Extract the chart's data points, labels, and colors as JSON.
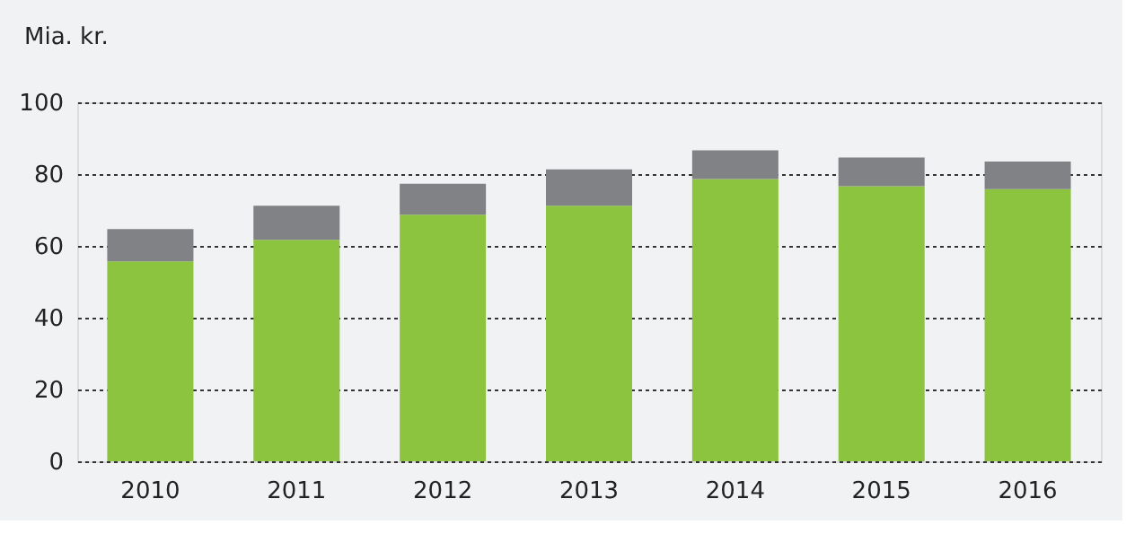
{
  "chart_data": {
    "type": "bar",
    "ylabel": "Mia. kr.",
    "categories": [
      "2010",
      "2011",
      "2012",
      "2013",
      "2014",
      "2015",
      "2016"
    ],
    "stacked": true,
    "series": [
      {
        "color": "#8cc43f",
        "values": [
          55.7,
          61.7,
          68.7,
          71.2,
          78.6,
          76.6,
          75.8
        ]
      },
      {
        "color": "#818285",
        "values": [
          9,
          9.5,
          8.6,
          10.1,
          8,
          8,
          7.7
        ]
      }
    ],
    "ylim": [
      0,
      100
    ],
    "yticks": [
      0,
      20,
      40,
      60,
      80,
      100
    ],
    "grid": "y",
    "legend": false
  }
}
